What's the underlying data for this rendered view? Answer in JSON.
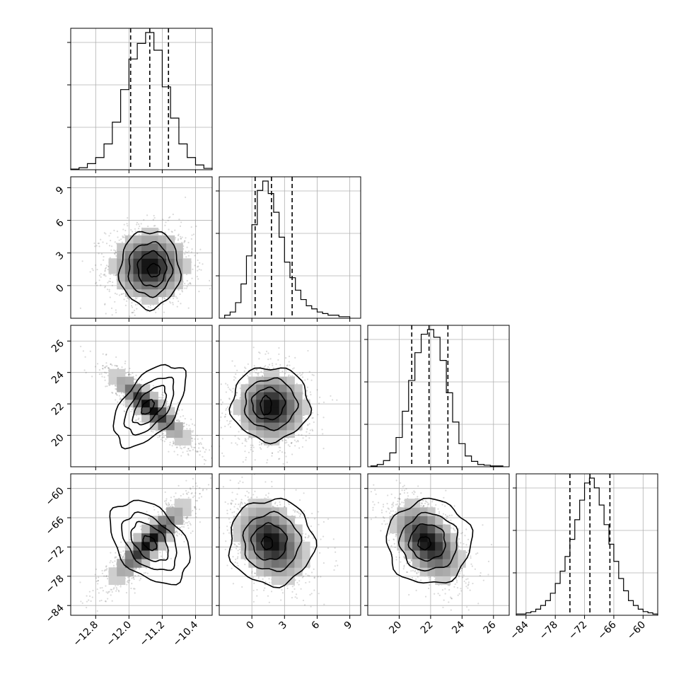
{
  "chart_data": {
    "type": "corner",
    "parameters": [
      {
        "range": [
          -13.4,
          -10.0
        ],
        "ticks": [
          -12.8,
          -12.0,
          -11.2,
          -10.4
        ],
        "tick_labels": [
          "−12.8",
          "−12.0",
          "−11.2",
          "−10.4"
        ],
        "mean": -11.5,
        "std": 0.45,
        "quantiles": [
          -11.96,
          -11.5,
          -11.05
        ],
        "histogram": {
          "bin_edges": [
            -13.4,
            -13.2,
            -13.0,
            -12.8,
            -12.6,
            -12.4,
            -12.2,
            -12.0,
            -11.8,
            -11.6,
            -11.4,
            -11.2,
            -11.0,
            -10.8,
            -10.6,
            -10.4,
            -10.2,
            -10.0
          ],
          "counts": [
            1,
            3,
            9,
            18,
            38,
            70,
            118,
            163,
            186,
            202,
            176,
            122,
            76,
            38,
            18,
            7,
            2
          ]
        }
      },
      {
        "range": [
          -3.0,
          10.0
        ],
        "ticks": [
          0,
          3,
          6,
          9
        ],
        "tick_labels": [
          "0",
          "3",
          "6",
          "9"
        ],
        "mean": 1.8,
        "std": 1.6,
        "quantiles": [
          0.3,
          1.8,
          3.7
        ],
        "histogram": {
          "bin_edges": [
            -2.5,
            -2.0,
            -1.5,
            -1.0,
            -0.5,
            0.0,
            0.5,
            1.0,
            1.5,
            2.0,
            2.5,
            3.0,
            3.5,
            4.0,
            4.5,
            5.0,
            5.5,
            6.0,
            6.5,
            7.0,
            7.5,
            8.0,
            8.5,
            9.0
          ],
          "counts": [
            2,
            4,
            10,
            22,
            40,
            60,
            82,
            88,
            80,
            68,
            52,
            36,
            26,
            18,
            12,
            8,
            6,
            4,
            3,
            2,
            2,
            1,
            1
          ]
        }
      },
      {
        "range": [
          18.0,
          27.0
        ],
        "ticks": [
          20,
          22,
          24,
          26
        ],
        "tick_labels": [
          "20",
          "22",
          "24",
          "26"
        ],
        "mean": 21.8,
        "std": 1.1,
        "quantiles": [
          20.8,
          21.9,
          23.1
        ],
        "histogram": {
          "bin_edges": [
            18.2,
            18.6,
            19.0,
            19.4,
            19.8,
            20.2,
            20.6,
            21.0,
            21.4,
            21.8,
            22.2,
            22.6,
            23.0,
            23.4,
            23.8,
            24.2,
            24.6,
            25.0,
            25.4,
            25.8,
            26.2,
            26.6
          ],
          "counts": [
            1,
            3,
            8,
            18,
            38,
            72,
            112,
            148,
            172,
            178,
            168,
            138,
            96,
            58,
            30,
            14,
            7,
            3,
            2,
            1,
            1
          ]
        }
      },
      {
        "range": [
          -86.0,
          -57.0
        ],
        "ticks": [
          -84,
          -78,
          -72,
          -66,
          -60
        ],
        "tick_labels": [
          "−84",
          "−78",
          "−72",
          "−66",
          "−60"
        ],
        "mean": -70.9,
        "std": 4.0,
        "quantiles": [
          -75.0,
          -70.9,
          -66.8
        ],
        "histogram": {
          "bin_edges": [
            -86,
            -85,
            -84,
            -83,
            -82,
            -81,
            -80,
            -79,
            -78,
            -77,
            -76,
            -75,
            -74,
            -73,
            -72,
            -71,
            -70,
            -69,
            -68,
            -67,
            -66,
            -65,
            -64,
            -63,
            -62,
            -61,
            -60,
            -59,
            -58,
            -57
          ],
          "counts": [
            1,
            1,
            2,
            3,
            5,
            8,
            12,
            18,
            26,
            36,
            48,
            62,
            78,
            94,
            108,
            112,
            104,
            90,
            74,
            58,
            44,
            30,
            20,
            12,
            8,
            5,
            3,
            2,
            1
          ]
        }
      }
    ],
    "pairs": [
      {
        "row": 1,
        "col": 0,
        "rho": 0.0,
        "contours_data": [
          {
            "cx": -11.5,
            "cy": 1.5,
            "rx": 0.72,
            "ry": 3.55,
            "rot": 0
          },
          {
            "cx": -11.5,
            "cy": 1.5,
            "rx": 0.52,
            "ry": 2.45,
            "rot": 0
          },
          {
            "cx": -11.45,
            "cy": 1.5,
            "rx": 0.34,
            "ry": 1.6,
            "rot": 0
          },
          {
            "cx": -11.4,
            "cy": 1.4,
            "rx": 0.15,
            "ry": 0.6,
            "rot": 0
          }
        ]
      },
      {
        "row": 2,
        "col": 0,
        "rho": -0.88,
        "contours_data": [
          {
            "cx": -11.5,
            "cy": 21.9,
            "rx": 1.15,
            "ry": 1.65,
            "rot": -52
          },
          {
            "cx": -11.5,
            "cy": 21.9,
            "rx": 0.8,
            "ry": 1.1,
            "rot": -52
          },
          {
            "cx": -11.5,
            "cy": 21.9,
            "rx": 0.55,
            "ry": 0.7,
            "rot": -52
          },
          {
            "cx": -11.55,
            "cy": 21.8,
            "rx": 0.2,
            "ry": 0.3,
            "rot": -52
          }
        ]
      },
      {
        "row": 2,
        "col": 1,
        "rho": 0.0,
        "contours_data": [
          {
            "cx": 1.7,
            "cy": 22.0,
            "rx": 3.6,
            "ry": 2.35,
            "rot": 0
          },
          {
            "cx": 1.7,
            "cy": 22.0,
            "rx": 2.4,
            "ry": 1.6,
            "rot": 0
          },
          {
            "cx": 1.5,
            "cy": 22.0,
            "rx": 1.5,
            "ry": 1.0,
            "rot": 0
          },
          {
            "cx": 1.3,
            "cy": 21.9,
            "rx": 0.5,
            "ry": 0.6,
            "rot": 0
          }
        ]
      },
      {
        "row": 3,
        "col": 0,
        "rho": 0.88,
        "contours_data": [
          {
            "cx": -11.5,
            "cy": -71.0,
            "rx": 1.15,
            "ry": 6.5,
            "rot": 48
          },
          {
            "cx": -11.5,
            "cy": -71.0,
            "rx": 0.8,
            "ry": 4.4,
            "rot": 48
          },
          {
            "cx": -11.5,
            "cy": -71.0,
            "rx": 0.55,
            "ry": 2.9,
            "rot": 48
          },
          {
            "cx": -11.5,
            "cy": -71.2,
            "rx": 0.2,
            "ry": 1.1,
            "rot": 48
          }
        ]
      },
      {
        "row": 3,
        "col": 1,
        "rho": -0.3,
        "contours_data": [
          {
            "cx": 1.8,
            "cy": -71.0,
            "rx": 3.9,
            "ry": 8.8,
            "rot": -10
          },
          {
            "cx": 1.8,
            "cy": -71.0,
            "rx": 2.6,
            "ry": 5.9,
            "rot": -10
          },
          {
            "cx": 1.6,
            "cy": -71.0,
            "rx": 1.6,
            "ry": 3.7,
            "rot": -10
          },
          {
            "cx": 1.4,
            "cy": -71.2,
            "rx": 0.5,
            "ry": 1.3,
            "rot": -10
          }
        ]
      },
      {
        "row": 3,
        "col": 2,
        "rho": -0.5,
        "contours_data": [
          {
            "cx": 21.9,
            "cy": -71.0,
            "rx": 2.7,
            "ry": 8.6,
            "rot": -30
          },
          {
            "cx": 21.9,
            "cy": -71.0,
            "rx": 1.85,
            "ry": 5.8,
            "rot": -30
          },
          {
            "cx": 21.8,
            "cy": -71.0,
            "rx": 1.15,
            "ry": 3.7,
            "rot": -30
          },
          {
            "cx": 21.6,
            "cy": -71.2,
            "rx": 0.4,
            "ry": 1.3,
            "rot": -30
          }
        ]
      }
    ]
  }
}
